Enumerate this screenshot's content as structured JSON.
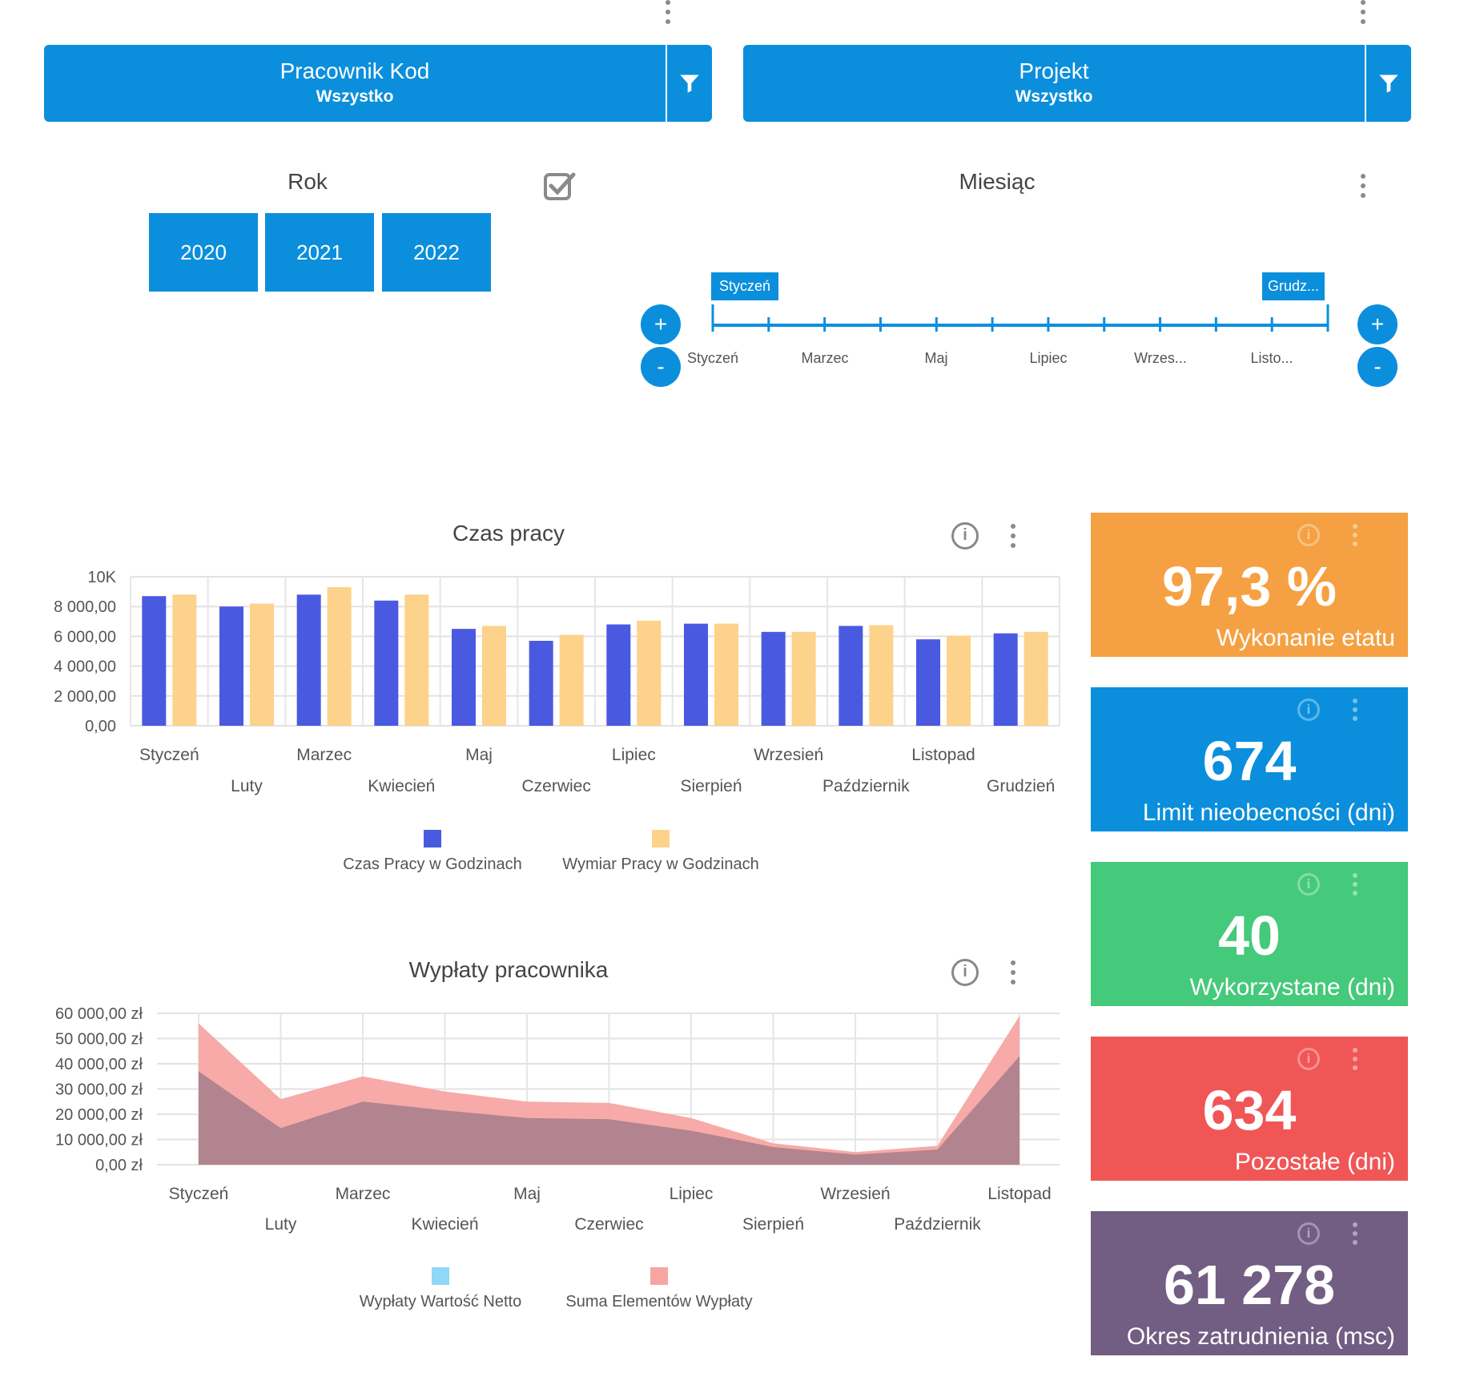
{
  "filters": [
    {
      "title": "Pracownik Kod",
      "value": "Wszystko"
    },
    {
      "title": "Projekt",
      "value": "Wszystko"
    }
  ],
  "year_section": {
    "title": "Rok",
    "years": [
      "2020",
      "2021",
      "2022"
    ]
  },
  "month_section": {
    "title": "Miesiąc",
    "start_flag": "Styczeń",
    "end_flag": "Grudz...",
    "labels": [
      "Styczeń",
      "Marzec",
      "Maj",
      "Lipiec",
      "Wrzes...",
      "Listo..."
    ],
    "plus": "+",
    "minus": "-"
  },
  "work_chart": {
    "title": "Czas pracy",
    "chart_data": {
      "type": "bar",
      "categories": [
        "Styczeń",
        "Luty",
        "Marzec",
        "Kwiecień",
        "Maj",
        "Czerwiec",
        "Lipiec",
        "Sierpień",
        "Wrzesień",
        "Październik",
        "Listopad",
        "Grudzień"
      ],
      "series": [
        {
          "name": "Czas Pracy w Godzinach",
          "values": [
            8700,
            8000,
            8800,
            8400,
            6500,
            5700,
            6800,
            6850,
            6300,
            6700,
            5800,
            6200
          ]
        },
        {
          "name": "Wymiar Pracy w Godzinach",
          "values": [
            8800,
            8200,
            9300,
            8800,
            6700,
            6100,
            7050,
            6850,
            6300,
            6750,
            6050,
            6300
          ]
        }
      ],
      "yticks": [
        "0,00",
        "2 000,00",
        "4 000,00",
        "6 000,00",
        "8 000,00",
        "10K"
      ],
      "ylim": [
        0,
        10000
      ],
      "colors": [
        "#4a5ae0",
        "#fdd28a"
      ],
      "grid": true,
      "legend": "bottom"
    }
  },
  "pay_chart": {
    "title": "Wypłaty pracownika",
    "chart_data": {
      "type": "area",
      "categories": [
        "Styczeń",
        "Luty",
        "Marzec",
        "Kwiecień",
        "Maj",
        "Czerwiec",
        "Lipiec",
        "Sierpień",
        "Wrzesień",
        "Październik",
        "Listopad"
      ],
      "x_points": 11,
      "series": [
        {
          "name": "Wypłaty Wartość Netto",
          "values": [
            37000,
            14500,
            25000,
            21500,
            18500,
            18000,
            13500,
            7000,
            4000,
            6000,
            43000
          ]
        },
        {
          "name": "Suma Elementów Wypłaty",
          "values": [
            56000,
            26000,
            35000,
            29000,
            25000,
            24500,
            18500,
            8500,
            5000,
            7500,
            59000
          ]
        }
      ],
      "yticks": [
        "0,00 zł",
        "10 000,00 zł",
        "20 000,00 zł",
        "30 000,00 zł",
        "40 000,00 zł",
        "50 000,00 zł",
        "60 000,00 zł"
      ],
      "ylim": [
        0,
        60000
      ],
      "colors": [
        "#8fd8f8",
        "#f7a5a2"
      ],
      "grid": true,
      "legend": "bottom"
    }
  },
  "kpis": [
    {
      "value": "97,3 %",
      "label": "Wykonanie etatu",
      "color": "#f5a143"
    },
    {
      "value": "674",
      "label": "Limit nieobecności (dni)",
      "color": "#0b8fdc"
    },
    {
      "value": "40",
      "label": "Wykorzystane (dni)",
      "color": "#45c97a"
    },
    {
      "value": "634",
      "label": "Pozostałe (dni)",
      "color": "#f05656"
    },
    {
      "value": "61 278",
      "label": "Okres zatrudnienia (msc)",
      "color": "#725d83"
    }
  ]
}
